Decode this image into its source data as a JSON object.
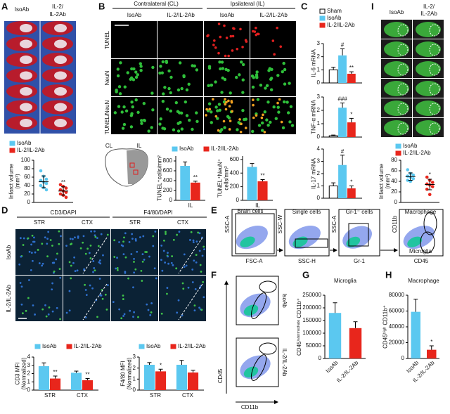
{
  "figure": {
    "panel_labels": [
      "A",
      "B",
      "C",
      "D",
      "E",
      "F",
      "G",
      "H",
      "I"
    ],
    "a_image": {
      "columns": [
        "IsoAb",
        [
          "IL-2/",
          "IL-2Ab"
        ]
      ]
    },
    "b_image": {
      "groups": [
        "Contralateral (CL)",
        "Ipsilateral (IL)"
      ],
      "columns": [
        "IsoAb",
        "IL-2/IL-2Ab",
        "IsoAb",
        "IL-2/IL-2Ab"
      ],
      "rows": [
        "TUNEL",
        "NeuN",
        [
          "TUNEL/",
          "NeuN"
        ]
      ],
      "schematic": [
        "CL",
        "IL"
      ]
    },
    "d_image": {
      "groups": [
        "CD3/DAPI",
        "F4/80/DAPI"
      ],
      "columns": [
        "STR",
        "CTX",
        "STR",
        "CTX"
      ],
      "rows": [
        "IsoAb",
        "IL-2/IL-2Ab"
      ]
    },
    "e_flow": {
      "gates": [
        "Brain cells",
        "Single cells",
        "Gr-1⁻ cells",
        "Macrophage",
        "Microglia"
      ],
      "x_axes": [
        "FSC-A",
        "SSC-H",
        "Gr-1",
        "CD45"
      ],
      "y_axes": [
        "SSC-A",
        "SSC-W",
        "SSC-A",
        "CD11b"
      ]
    },
    "f_flow": {
      "rows": [
        "IsoAb",
        "IL-2/IL-2Ab"
      ],
      "y_axis": "CD45",
      "x_axis": "CD11b"
    },
    "i_image": {
      "columns": [
        "IsoAb",
        [
          "IL-2/",
          "IL-2Ab"
        ]
      ]
    }
  },
  "chart_data": [
    {
      "type": "dot",
      "ylabel": [
        "Infarct volume",
        "(mm³)"
      ],
      "ylim": [
        0,
        100
      ],
      "yticks": [
        0,
        20,
        40,
        60,
        80,
        100
      ],
      "legend": "top",
      "series": [
        {
          "name": "IsoAb",
          "color": "#5bc8f0",
          "values": [
            75,
            62,
            55,
            52,
            48,
            45,
            40,
            35,
            30
          ],
          "mean": 49,
          "error": 14
        },
        {
          "name": "IL-2/IL-2Ab",
          "color": "#e8261c",
          "values": [
            42,
            38,
            34,
            30,
            27,
            24,
            20,
            17,
            12
          ],
          "mean": 27,
          "error": 10,
          "annotation": "**"
        }
      ]
    },
    {
      "type": "bar",
      "ylabel": "TUNEL⁺cells/mm²",
      "ylim": [
        0,
        900
      ],
      "yticks": [
        0,
        200,
        400,
        600,
        800
      ],
      "categories": [
        "IL"
      ],
      "legend": "top",
      "series": [
        {
          "name": "IsoAb",
          "color": "#5bc8f0",
          "values": [
            700
          ],
          "errors": [
            80
          ]
        },
        {
          "name": "IL-2/IL-2Ab",
          "color": "#e8261c",
          "values": [
            360
          ],
          "errors": [
            30
          ],
          "annotations": [
            "**"
          ]
        }
      ]
    },
    {
      "type": "bar",
      "ylabel": [
        "TUNEL⁺NeuN⁺",
        "cells/mm²"
      ],
      "ylim": [
        0,
        650
      ],
      "yticks": [
        0,
        200,
        400,
        600
      ],
      "categories": [
        "IL"
      ],
      "series": [
        {
          "color": "#5bc8f0",
          "values": [
            490
          ],
          "errors": [
            50
          ]
        },
        {
          "color": "#e8261c",
          "values": [
            280
          ],
          "errors": [
            25
          ],
          "annotations": [
            "**"
          ]
        }
      ]
    },
    {
      "type": "bar",
      "ylabel": "IL-6 mRNA",
      "ylim": [
        0,
        3
      ],
      "yticks": [
        0,
        1,
        2,
        3
      ],
      "legend": "top",
      "series": [
        {
          "name": "Sham",
          "color": "#ffffff",
          "values": [
            1.0
          ],
          "errors": [
            0.2
          ]
        },
        {
          "name": "IsoAb",
          "color": "#5bc8f0",
          "values": [
            2.1
          ],
          "errors": [
            0.5
          ],
          "annotations": [
            "#"
          ]
        },
        {
          "name": "IL-2/IL-2Ab",
          "color": "#e8261c",
          "values": [
            0.7
          ],
          "errors": [
            0.15
          ],
          "annotations": [
            "**"
          ]
        }
      ]
    },
    {
      "type": "bar",
      "ylabel": "TNF-α mRNA",
      "ylim": [
        0,
        3
      ],
      "yticks": [
        0,
        1,
        2,
        3
      ],
      "series": [
        {
          "color": "#ffffff",
          "values": [
            0.1
          ],
          "errors": [
            0.05
          ]
        },
        {
          "color": "#5bc8f0",
          "values": [
            2.2
          ],
          "errors": [
            0.35
          ],
          "annotations": [
            "###"
          ]
        },
        {
          "color": "#e8261c",
          "values": [
            1.1
          ],
          "errors": [
            0.3
          ],
          "annotations": [
            "*"
          ]
        }
      ]
    },
    {
      "type": "bar",
      "ylabel": "IL-17 mRNA",
      "ylim": [
        0,
        4
      ],
      "yticks": [
        0,
        1,
        2,
        3,
        4
      ],
      "series": [
        {
          "color": "#ffffff",
          "values": [
            1.0
          ],
          "errors": [
            0.25
          ]
        },
        {
          "color": "#5bc8f0",
          "values": [
            2.7
          ],
          "errors": [
            0.8
          ],
          "annotations": [
            "#"
          ]
        },
        {
          "color": "#e8261c",
          "values": [
            0.8
          ],
          "errors": [
            0.2
          ],
          "annotations": [
            "*"
          ]
        }
      ]
    },
    {
      "type": "dot",
      "ylabel": [
        "Infarct volume",
        "(mm³)"
      ],
      "ylim": [
        0,
        80
      ],
      "yticks": [
        0,
        20,
        40,
        60,
        80
      ],
      "legend": "top",
      "series": [
        {
          "name": "IsoAb",
          "color": "#5bc8f0",
          "values": [
            62,
            55,
            52,
            50,
            48,
            45,
            42,
            40
          ],
          "mean": 49,
          "error": 7
        },
        {
          "name": "IL-2/IL-2Ab",
          "color": "#e8261c",
          "values": [
            48,
            42,
            38,
            35,
            33,
            30,
            25,
            15
          ],
          "mean": 34,
          "error": 10,
          "annotation": "*"
        }
      ]
    },
    {
      "type": "bar",
      "ylabel": [
        "CD3 MFI",
        "(Normalized)"
      ],
      "ylim": [
        0,
        4
      ],
      "yticks": [
        0,
        1,
        2,
        3,
        4
      ],
      "categories": [
        "STR",
        "CTX"
      ],
      "legend": "top",
      "series": [
        {
          "name": "IsoAb",
          "color": "#5bc8f0",
          "values": [
            2.9,
            2.1
          ],
          "errors": [
            0.4,
            0.2
          ]
        },
        {
          "name": "IL-2/IL-2Ab",
          "color": "#e8261c",
          "values": [
            1.4,
            1.2
          ],
          "errors": [
            0.3,
            0.2
          ],
          "annotations": [
            "**",
            "**"
          ]
        }
      ]
    },
    {
      "type": "bar",
      "ylabel": [
        "F4/80 MFI",
        "(Normalized)"
      ],
      "ylim": [
        0,
        3
      ],
      "yticks": [
        0,
        1,
        2,
        3
      ],
      "categories": [
        "STR",
        "CTX"
      ],
      "legend": "top",
      "series": [
        {
          "name": "IsoAb",
          "color": "#5bc8f0",
          "values": [
            2.3,
            2.3
          ],
          "errors": [
            0.2,
            0.4
          ]
        },
        {
          "name": "IL-2/IL-2Ab",
          "color": "#e8261c",
          "values": [
            1.7,
            1.6
          ],
          "errors": [
            0.2,
            0.2
          ],
          "annotations": [
            "*",
            null
          ]
        }
      ]
    },
    {
      "type": "bar",
      "title": "Microglia",
      "ylabel": "CD45ⁱⁿᵗᵉʳᵐᵉᵈⁱᵃᵗᵉ CD11b⁺",
      "ylim": [
        0,
        250000
      ],
      "yticks": [
        0,
        50000,
        100000,
        150000,
        200000,
        250000
      ],
      "categories": [
        "IsoAb",
        "IL-2/IL-2Ab"
      ],
      "colors": [
        "#5bc8f0",
        "#e8261c"
      ],
      "values": [
        180000,
        120000
      ],
      "errors": [
        40000,
        25000
      ]
    },
    {
      "type": "bar",
      "title": "Macrophage",
      "ylabel": "CD45ʰⁱᵍʰ CD11b⁺",
      "ylim": [
        0,
        80000
      ],
      "yticks": [
        0,
        20000,
        40000,
        60000,
        80000
      ],
      "categories": [
        "IsoAb",
        "IL-2/IL-2Ab"
      ],
      "colors": [
        "#5bc8f0",
        "#e8261c"
      ],
      "values": [
        59000,
        11000
      ],
      "errors": [
        16000,
        5000
      ],
      "annotations": [
        null,
        "*"
      ]
    }
  ]
}
